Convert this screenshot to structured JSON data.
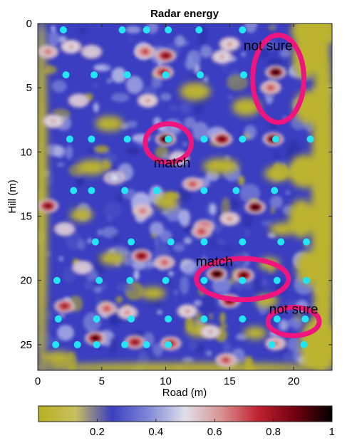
{
  "chart_data": {
    "type": "heatmap",
    "title": "Radar energy",
    "xlabel": "Road (m)",
    "ylabel": "Hill (m)",
    "xlim": [
      0,
      23
    ],
    "ylim": [
      0,
      27
    ],
    "y_reversed": true,
    "grid": false,
    "x_ticks": [
      "0",
      "5",
      "10",
      "15",
      "20"
    ],
    "y_ticks": [
      "0",
      "5",
      "10",
      "15",
      "20",
      "25"
    ],
    "colorbar": {
      "position": "bottom",
      "ticks": [
        "0.2",
        "0.4",
        "0.6",
        "0.8",
        "1"
      ],
      "range": [
        0,
        1
      ]
    },
    "colormap": [
      "#b8b020",
      "#c8c060",
      "#3b3ec0",
      "#8088d8",
      "#e0e0e8",
      "#d89090",
      "#c02030",
      "#700010",
      "#000000"
    ],
    "point_color": "#22e5f5",
    "annotation_color": "#f0157e",
    "annotations": [
      {
        "text": "not sure",
        "x": 18.0,
        "y": 1.7,
        "ellipse": {
          "cx": 18.8,
          "cy": 4.3,
          "rx": 2.0,
          "ry": 3.4
        }
      },
      {
        "text": "match",
        "x": 10.5,
        "y": 10.8,
        "ellipse": {
          "cx": 10.2,
          "cy": 9.3,
          "rx": 1.8,
          "ry": 1.5
        }
      },
      {
        "text": "match",
        "x": 13.8,
        "y": 18.5,
        "ellipse": {
          "cx": 16.0,
          "cy": 19.9,
          "rx": 3.6,
          "ry": 1.6
        }
      },
      {
        "text": "not sure",
        "x": 20.0,
        "y": 22.2,
        "ellipse": {
          "cx": 20.0,
          "cy": 23.2,
          "rx": 2.0,
          "ry": 1.1
        }
      }
    ],
    "points": [
      {
        "x": 2.0,
        "y": 0.5
      },
      {
        "x": 6.6,
        "y": 0.5
      },
      {
        "x": 8.5,
        "y": 0.5
      },
      {
        "x": 10.2,
        "y": 0.5
      },
      {
        "x": 12.6,
        "y": 0.5
      },
      {
        "x": 16.0,
        "y": 0.5
      },
      {
        "x": 2.2,
        "y": 4.0
      },
      {
        "x": 4.4,
        "y": 4.0
      },
      {
        "x": 7.0,
        "y": 4.0
      },
      {
        "x": 10.0,
        "y": 4.0
      },
      {
        "x": 12.7,
        "y": 4.0
      },
      {
        "x": 16.1,
        "y": 4.0
      },
      {
        "x": 2.5,
        "y": 9.0
      },
      {
        "x": 4.2,
        "y": 9.0
      },
      {
        "x": 7.0,
        "y": 9.0
      },
      {
        "x": 10.2,
        "y": 9.0
      },
      {
        "x": 13.0,
        "y": 9.0
      },
      {
        "x": 16.0,
        "y": 9.0
      },
      {
        "x": 18.6,
        "y": 9.0
      },
      {
        "x": 21.3,
        "y": 9.0
      },
      {
        "x": 2.8,
        "y": 13.0
      },
      {
        "x": 4.2,
        "y": 13.0
      },
      {
        "x": 6.8,
        "y": 13.0
      },
      {
        "x": 9.3,
        "y": 13.0
      },
      {
        "x": 13.0,
        "y": 13.0
      },
      {
        "x": 15.5,
        "y": 13.0
      },
      {
        "x": 18.5,
        "y": 13.0
      },
      {
        "x": 4.5,
        "y": 17.0
      },
      {
        "x": 7.3,
        "y": 17.0
      },
      {
        "x": 10.4,
        "y": 17.0
      },
      {
        "x": 13.0,
        "y": 17.0
      },
      {
        "x": 16.0,
        "y": 17.0
      },
      {
        "x": 19.0,
        "y": 17.0
      },
      {
        "x": 21.0,
        "y": 17.0
      },
      {
        "x": 1.5,
        "y": 20.0
      },
      {
        "x": 4.8,
        "y": 20.0
      },
      {
        "x": 7.2,
        "y": 20.0
      },
      {
        "x": 10.0,
        "y": 20.0
      },
      {
        "x": 13.0,
        "y": 20.0
      },
      {
        "x": 16.0,
        "y": 20.0
      },
      {
        "x": 18.7,
        "y": 20.0
      },
      {
        "x": 21.0,
        "y": 20.0
      },
      {
        "x": 1.6,
        "y": 23.0
      },
      {
        "x": 4.6,
        "y": 23.0
      },
      {
        "x": 7.3,
        "y": 23.0
      },
      {
        "x": 10.2,
        "y": 23.0
      },
      {
        "x": 13.0,
        "y": 23.0
      },
      {
        "x": 16.0,
        "y": 23.0
      },
      {
        "x": 18.7,
        "y": 23.0
      },
      {
        "x": 20.9,
        "y": 23.0
      },
      {
        "x": 1.4,
        "y": 25.0
      },
      {
        "x": 3.1,
        "y": 25.0
      },
      {
        "x": 4.6,
        "y": 25.0
      },
      {
        "x": 6.8,
        "y": 25.0
      },
      {
        "x": 8.5,
        "y": 25.0
      },
      {
        "x": 10.2,
        "y": 25.0
      },
      {
        "x": 18.3,
        "y": 25.0
      },
      {
        "x": 20.8,
        "y": 25.0
      }
    ],
    "hotspots": [
      {
        "x": 0.8,
        "y": 2.2,
        "v": 0.65
      },
      {
        "x": 2.6,
        "y": 1.8,
        "v": 0.58
      },
      {
        "x": 4.2,
        "y": 2.2,
        "v": 0.55
      },
      {
        "x": 8.4,
        "y": 2.2,
        "v": 0.72
      },
      {
        "x": 10.0,
        "y": 2.5,
        "v": 0.85
      },
      {
        "x": 9.8,
        "y": 3.8,
        "v": 0.8
      },
      {
        "x": 15.0,
        "y": 1.6,
        "v": 0.6
      },
      {
        "x": 14.4,
        "y": 2.6,
        "v": 0.58
      },
      {
        "x": 18.6,
        "y": 3.8,
        "v": 0.95
      },
      {
        "x": 18.2,
        "y": 5.0,
        "v": 0.7
      },
      {
        "x": 3.2,
        "y": 6.0,
        "v": 0.55
      },
      {
        "x": 8.6,
        "y": 6.0,
        "v": 0.6
      },
      {
        "x": 1.2,
        "y": 7.6,
        "v": 0.58
      },
      {
        "x": 10.0,
        "y": 9.0,
        "v": 1.0
      },
      {
        "x": 14.4,
        "y": 9.0,
        "v": 0.88
      },
      {
        "x": 18.4,
        "y": 9.0,
        "v": 0.92
      },
      {
        "x": 11.0,
        "y": 10.5,
        "v": 0.55
      },
      {
        "x": 12.1,
        "y": 12.5,
        "v": 0.7
      },
      {
        "x": 6.0,
        "y": 12.0,
        "v": 0.5
      },
      {
        "x": 0.8,
        "y": 14.2,
        "v": 0.85
      },
      {
        "x": 17.0,
        "y": 14.3,
        "v": 0.95
      },
      {
        "x": 8.2,
        "y": 14.6,
        "v": 0.65
      },
      {
        "x": 13.0,
        "y": 15.8,
        "v": 0.75
      },
      {
        "x": 12.8,
        "y": 16.2,
        "v": 0.72
      },
      {
        "x": 15.0,
        "y": 15.2,
        "v": 0.62
      },
      {
        "x": 2.1,
        "y": 16.0,
        "v": 0.55
      },
      {
        "x": 8.1,
        "y": 18.1,
        "v": 0.85
      },
      {
        "x": 9.9,
        "y": 18.6,
        "v": 0.68
      },
      {
        "x": 14.0,
        "y": 19.5,
        "v": 0.98
      },
      {
        "x": 16.1,
        "y": 19.6,
        "v": 0.9
      },
      {
        "x": 3.5,
        "y": 19.0,
        "v": 0.55
      },
      {
        "x": 15.0,
        "y": 21.6,
        "v": 0.88
      },
      {
        "x": 2.1,
        "y": 22.0,
        "v": 0.8
      },
      {
        "x": 5.4,
        "y": 22.2,
        "v": 0.7
      },
      {
        "x": 11.7,
        "y": 22.4,
        "v": 0.6
      },
      {
        "x": 7.0,
        "y": 22.5,
        "v": 0.62
      },
      {
        "x": 4.5,
        "y": 24.5,
        "v": 0.92
      },
      {
        "x": 7.6,
        "y": 24.8,
        "v": 0.82
      },
      {
        "x": 10.4,
        "y": 24.9,
        "v": 0.78
      },
      {
        "x": 14.7,
        "y": 26.2,
        "v": 0.72
      },
      {
        "x": 18.6,
        "y": 24.9,
        "v": 0.65
      },
      {
        "x": 13.5,
        "y": 24.0,
        "v": 0.58
      }
    ],
    "yellow_regions": [
      {
        "x": 22.3,
        "y": 13.5,
        "rx": 0.9,
        "ry": 14
      },
      {
        "x": 21.6,
        "y": 0.6,
        "rx": 1.8,
        "ry": 1.5
      },
      {
        "x": 20.9,
        "y": 2.6,
        "rx": 1.0,
        "ry": 1.7
      },
      {
        "x": 21.2,
        "y": 6.5,
        "rx": 1.2,
        "ry": 1.3
      },
      {
        "x": 20.8,
        "y": 11.5,
        "rx": 1.2,
        "ry": 1.3
      },
      {
        "x": 20.6,
        "y": 15.2,
        "rx": 1.0,
        "ry": 1.5
      },
      {
        "x": 21.2,
        "y": 19.0,
        "rx": 1.0,
        "ry": 1.3
      },
      {
        "x": 22.0,
        "y": 25.0,
        "rx": 1.5,
        "ry": 2.2
      },
      {
        "x": 0.3,
        "y": 13.5,
        "rx": 0.45,
        "ry": 14
      },
      {
        "x": 11.5,
        "y": 26.8,
        "rx": 12,
        "ry": 0.4
      },
      {
        "x": 12.3,
        "y": 5.3,
        "rx": 1.2,
        "ry": 0.7
      },
      {
        "x": 16.3,
        "y": 6.5,
        "rx": 1.1,
        "ry": 0.7
      },
      {
        "x": 5.6,
        "y": 7.8,
        "rx": 1.1,
        "ry": 0.6
      },
      {
        "x": 14.3,
        "y": 11.1,
        "rx": 1.4,
        "ry": 0.6
      },
      {
        "x": 4.2,
        "y": 11.2,
        "rx": 1.2,
        "ry": 0.6
      },
      {
        "x": 18.7,
        "y": 11.7,
        "rx": 1.0,
        "ry": 0.6
      },
      {
        "x": 10.1,
        "y": 13.9,
        "rx": 0.9,
        "ry": 0.6
      },
      {
        "x": 3.4,
        "y": 14.9,
        "rx": 0.9,
        "ry": 0.5
      },
      {
        "x": 19.1,
        "y": 16.0,
        "rx": 1.0,
        "ry": 0.5
      },
      {
        "x": 5.8,
        "y": 18.3,
        "rx": 1.0,
        "ry": 0.5
      },
      {
        "x": 18.1,
        "y": 18.7,
        "rx": 0.8,
        "ry": 0.5
      },
      {
        "x": 9.0,
        "y": 21.0,
        "rx": 1.0,
        "ry": 0.5
      },
      {
        "x": 17.9,
        "y": 21.6,
        "rx": 0.9,
        "ry": 0.5
      },
      {
        "x": 12.6,
        "y": 23.9,
        "rx": 1.0,
        "ry": 0.5
      },
      {
        "x": 17.0,
        "y": 24.1,
        "rx": 0.9,
        "ry": 0.5
      },
      {
        "x": 1.6,
        "y": 26.0,
        "rx": 1.2,
        "ry": 0.5
      }
    ]
  }
}
